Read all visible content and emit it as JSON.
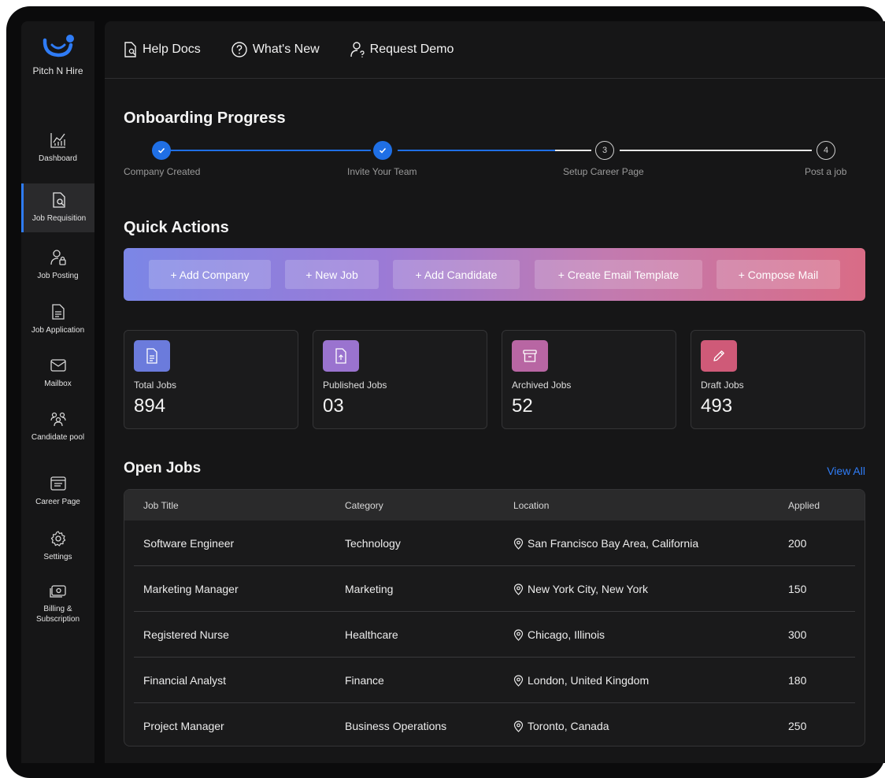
{
  "brand": {
    "name": "Pitch N Hire"
  },
  "sidebar": {
    "items": [
      {
        "label": "Dashboard",
        "icon": "chart-icon"
      },
      {
        "label": "Job Requisition",
        "icon": "document-search-icon",
        "active": true
      },
      {
        "label": "Job Posting",
        "icon": "user-lock-icon"
      },
      {
        "label": "Job Application",
        "icon": "file-text-icon"
      },
      {
        "label": "Mailbox",
        "icon": "mail-icon"
      },
      {
        "label": "Candidate pool",
        "icon": "users-icon"
      },
      {
        "label": "Career Page",
        "icon": "browser-icon"
      },
      {
        "label": "Settings",
        "icon": "gear-icon"
      },
      {
        "label": "Billing & Subscription",
        "icon": "billing-icon"
      }
    ]
  },
  "topbar": {
    "help_docs": "Help Docs",
    "whats_new": "What's New",
    "request_demo": "Request Demo"
  },
  "onboarding": {
    "title": "Onboarding Progress",
    "steps": [
      {
        "label": "Company Created",
        "state": "done"
      },
      {
        "label": "Invite Your Team",
        "state": "done"
      },
      {
        "label": "Setup Career Page",
        "state": "todo",
        "number": "3"
      },
      {
        "label": "Post a job",
        "state": "todo",
        "number": "4"
      }
    ],
    "accent": "#1f6fe5"
  },
  "quick_actions": {
    "title": "Quick Actions",
    "buttons": [
      "+ Add Company",
      "+ New Job",
      "+ Add Candidate",
      "+ Create Email Template",
      "+ Compose Mail"
    ]
  },
  "stats": [
    {
      "label": "Total Jobs",
      "value": "894",
      "color": "#6b7bdc",
      "icon": "document-icon"
    },
    {
      "label": "Published Jobs",
      "value": "03",
      "color": "#9a73cf",
      "icon": "file-upload-icon"
    },
    {
      "label": "Archived Jobs",
      "value": "52",
      "color": "#b866a3",
      "icon": "archive-icon"
    },
    {
      "label": "Draft Jobs",
      "value": "493",
      "color": "#cf5a78",
      "icon": "pencil-icon"
    }
  ],
  "open_jobs": {
    "title": "Open Jobs",
    "view_all": "View All",
    "columns": [
      "Job Title",
      "Category",
      "Location",
      "Applied"
    ],
    "rows": [
      {
        "title": "Software Engineer",
        "category": "Technology",
        "location": "San Francisco Bay Area, California",
        "applied": "200"
      },
      {
        "title": "Marketing Manager",
        "category": "Marketing",
        "location": "New York City, New York",
        "applied": "150"
      },
      {
        "title": "Registered Nurse",
        "category": "Healthcare",
        "location": "Chicago, Illinois",
        "applied": "300"
      },
      {
        "title": "Financial Analyst",
        "category": "Finance",
        "location": "London, United Kingdom",
        "applied": "180"
      },
      {
        "title": "Project Manager",
        "category": "Business Operations",
        "location": "Toronto, Canada",
        "applied": "250"
      }
    ]
  }
}
